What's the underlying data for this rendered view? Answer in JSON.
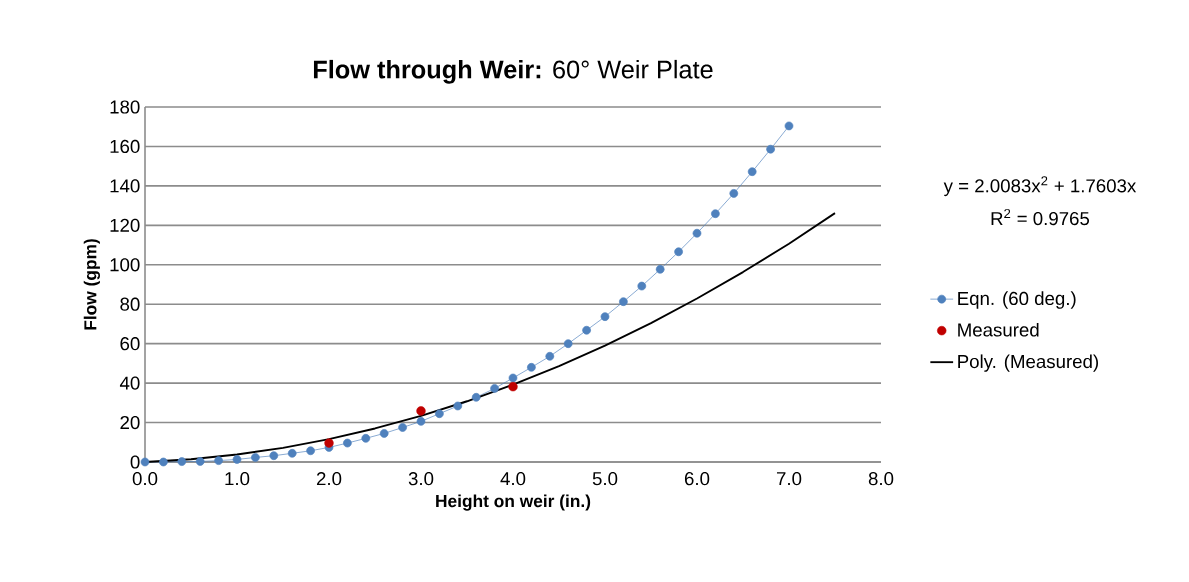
{
  "chart_data": {
    "type": "line",
    "title": "**Flow through Weir:** 60° Weir Plate",
    "xlabel": "Height on weir (in.)",
    "ylabel": "Flow (gpm)",
    "annotations": [
      "y = 2.0083x$^{2}$ + 1.7603x",
      "R$^{2}$ = 0.9765"
    ],
    "x": [
      0,
      0.2,
      0.4,
      0.6,
      0.8,
      1.0,
      1.2,
      1.4,
      1.6,
      1.8,
      2.0,
      2.2,
      2.4,
      2.6,
      2.8,
      3.0,
      3.2,
      3.4,
      3.6,
      3.8,
      4.0,
      4.2,
      4.4,
      4.6,
      4.8,
      5.0,
      5.2,
      5.4,
      5.6,
      5.8,
      6.0,
      6.2,
      6.4,
      6.6,
      6.8,
      7.0
    ],
    "series": [
      {
        "name": "Eqn. (60 deg.)",
        "color": "#4f81bd",
        "values": [
          0,
          0,
          0.2,
          0.3,
          0.7,
          1.3,
          2.3,
          3.2,
          4.4,
          5.7,
          7.4,
          9.6,
          12.0,
          14.5,
          17.5,
          20.6,
          24.5,
          28.4,
          32.8,
          37.3,
          42.6,
          48.0,
          53.6,
          60.0,
          66.8,
          73.7,
          81.3,
          89.2,
          97.7,
          106.6,
          116.0,
          125.9,
          136.2,
          147.2,
          158.6,
          170.4
        ]
      },
      {
        "name": "Measured",
        "type": "scatter",
        "color": "#c00000",
        "x": [
          2,
          3,
          4
        ],
        "values": [
          9.6,
          25.9,
          38.2
        ]
      },
      {
        "name": "Poly. (Measured)",
        "type": "line",
        "marker": "none",
        "color": "#000000",
        "x": [
          0,
          0.5,
          1,
          1.5,
          2,
          2.5,
          3,
          3.5,
          4,
          4.5,
          5,
          5.5,
          6,
          6.5,
          7,
          7.5
        ],
        "values": [
          0,
          1.4,
          3.8,
          7.2,
          11.6,
          17.0,
          23.4,
          30.8,
          39.2,
          48.6,
          59.0,
          70.4,
          82.9,
          96.3,
          110.7,
          126.2
        ]
      }
    ],
    "xlim": [
      0,
      8
    ],
    "ylim": [
      0,
      180
    ],
    "xticks": [
      {
        "value": 0,
        "label": "0.0"
      },
      {
        "value": 1,
        "label": "1.0"
      },
      {
        "value": 2,
        "label": "2.0"
      },
      {
        "value": 3,
        "label": "3.0"
      },
      {
        "value": 4,
        "label": "4.0"
      },
      {
        "value": 5,
        "label": "5.0"
      },
      {
        "value": 6,
        "label": "6.0"
      },
      {
        "value": 7,
        "label": "7.0"
      },
      {
        "value": 8,
        "label": "8.0"
      }
    ],
    "yticks": [
      0,
      20,
      40,
      60,
      80,
      100,
      120,
      140,
      160,
      180
    ],
    "grid": "y",
    "legend": "right",
    "marker": "circle",
    "line_style": "solid"
  }
}
